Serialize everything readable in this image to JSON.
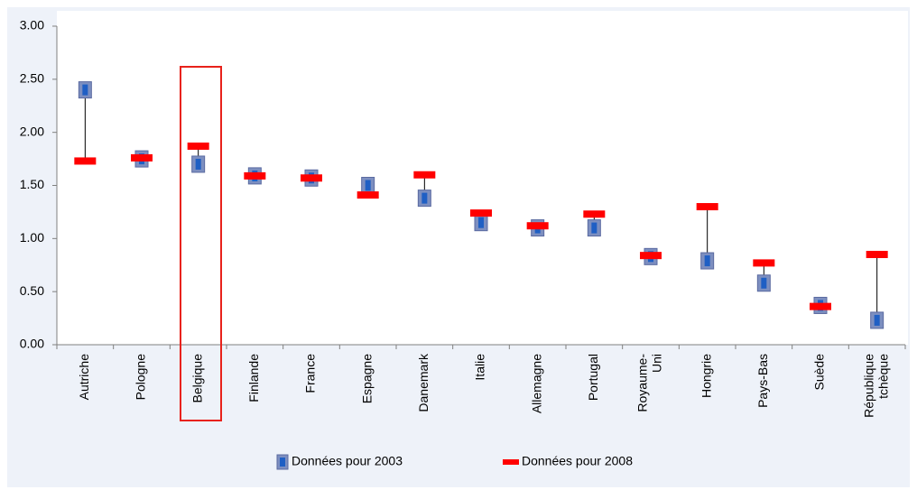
{
  "chart_data": {
    "type": "dropline",
    "categories": [
      "Autriche",
      "Pologne",
      "Belgique",
      "Finlande",
      "France",
      "Espagne",
      "Danemark",
      "Italie",
      "Allemagne",
      "Portugal",
      [
        "Royaume-",
        "Uni"
      ],
      "Hongrie",
      "Pays-Bas",
      "Suède",
      [
        "République",
        "tchèque"
      ]
    ],
    "series": [
      {
        "name": "Données pour 2003",
        "color": "#1f5fc4",
        "values": [
          2.4,
          1.75,
          1.7,
          1.59,
          1.57,
          1.5,
          1.38,
          1.15,
          1.1,
          1.1,
          0.83,
          0.79,
          0.58,
          0.37,
          0.23
        ]
      },
      {
        "name": "Données pour 2008",
        "color": "#ff0000",
        "values": [
          1.73,
          1.76,
          1.87,
          1.59,
          1.57,
          1.41,
          1.6,
          1.24,
          1.12,
          1.23,
          0.84,
          1.3,
          0.77,
          0.36,
          0.85
        ]
      }
    ],
    "ylim": [
      0,
      3
    ],
    "yticks": [
      {
        "value": 0,
        "label": "0.00"
      },
      {
        "value": 0.5,
        "label": "0.50"
      },
      {
        "value": 1,
        "label": "1.00"
      },
      {
        "value": 1.5,
        "label": "1.50"
      },
      {
        "value": 2,
        "label": "2.00"
      },
      {
        "value": 2.5,
        "label": "2.50"
      },
      {
        "value": 3,
        "label": "3.00"
      }
    ],
    "legend": "bottom"
  }
}
